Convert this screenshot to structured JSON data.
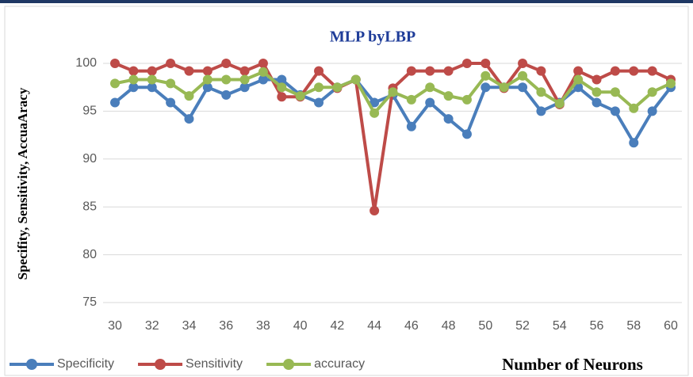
{
  "chart_data": {
    "type": "line",
    "title": "MLP byLBP",
    "ylabel": "Specifity, Sensitivity, AccuaAracy",
    "xlabel": "Number of Neurons",
    "x": [
      30,
      31,
      32,
      33,
      34,
      35,
      36,
      37,
      38,
      39,
      40,
      41,
      42,
      43,
      44,
      45,
      46,
      47,
      48,
      49,
      50,
      51,
      52,
      53,
      54,
      55,
      56,
      57,
      58,
      59,
      60
    ],
    "xlim": [
      30,
      60
    ],
    "xticks": [
      30,
      32,
      34,
      36,
      38,
      40,
      42,
      44,
      46,
      48,
      50,
      52,
      54,
      56,
      58,
      60
    ],
    "ylim": [
      75,
      100
    ],
    "yticks": [
      75,
      80,
      85,
      90,
      95,
      100
    ],
    "grid": true,
    "legend": "bottom-left",
    "series": [
      {
        "name": "Specificity",
        "color": "#4a7ebb",
        "values": [
          95.9,
          97.5,
          97.5,
          95.9,
          94.2,
          97.5,
          96.7,
          97.5,
          98.3,
          98.3,
          96.7,
          95.9,
          97.5,
          98.3,
          95.9,
          96.7,
          93.4,
          95.9,
          94.2,
          92.6,
          97.5,
          97.5,
          97.5,
          95.0,
          95.9,
          97.5,
          95.9,
          95.0,
          91.7,
          95.0,
          97.5
        ]
      },
      {
        "name": "Sensitivity",
        "color": "#be4b48",
        "values": [
          100,
          99.2,
          99.2,
          100,
          99.2,
          99.2,
          100,
          99.2,
          100,
          96.5,
          96.5,
          99.2,
          97.4,
          98.3,
          84.6,
          97.4,
          99.2,
          99.2,
          99.2,
          100,
          100,
          97.4,
          100,
          99.2,
          95.7,
          99.2,
          98.3,
          99.2,
          99.2,
          99.2,
          98.3
        ]
      },
      {
        "name": "accuracy",
        "color": "#98b954",
        "values": [
          97.9,
          98.3,
          98.3,
          97.9,
          96.6,
          98.3,
          98.3,
          98.3,
          99.1,
          97.5,
          96.6,
          97.5,
          97.5,
          98.3,
          94.8,
          97.0,
          96.2,
          97.5,
          96.6,
          96.2,
          98.7,
          97.5,
          98.7,
          97.0,
          95.8,
          98.3,
          97.0,
          97.0,
          95.3,
          97.0,
          97.9
        ]
      }
    ]
  }
}
